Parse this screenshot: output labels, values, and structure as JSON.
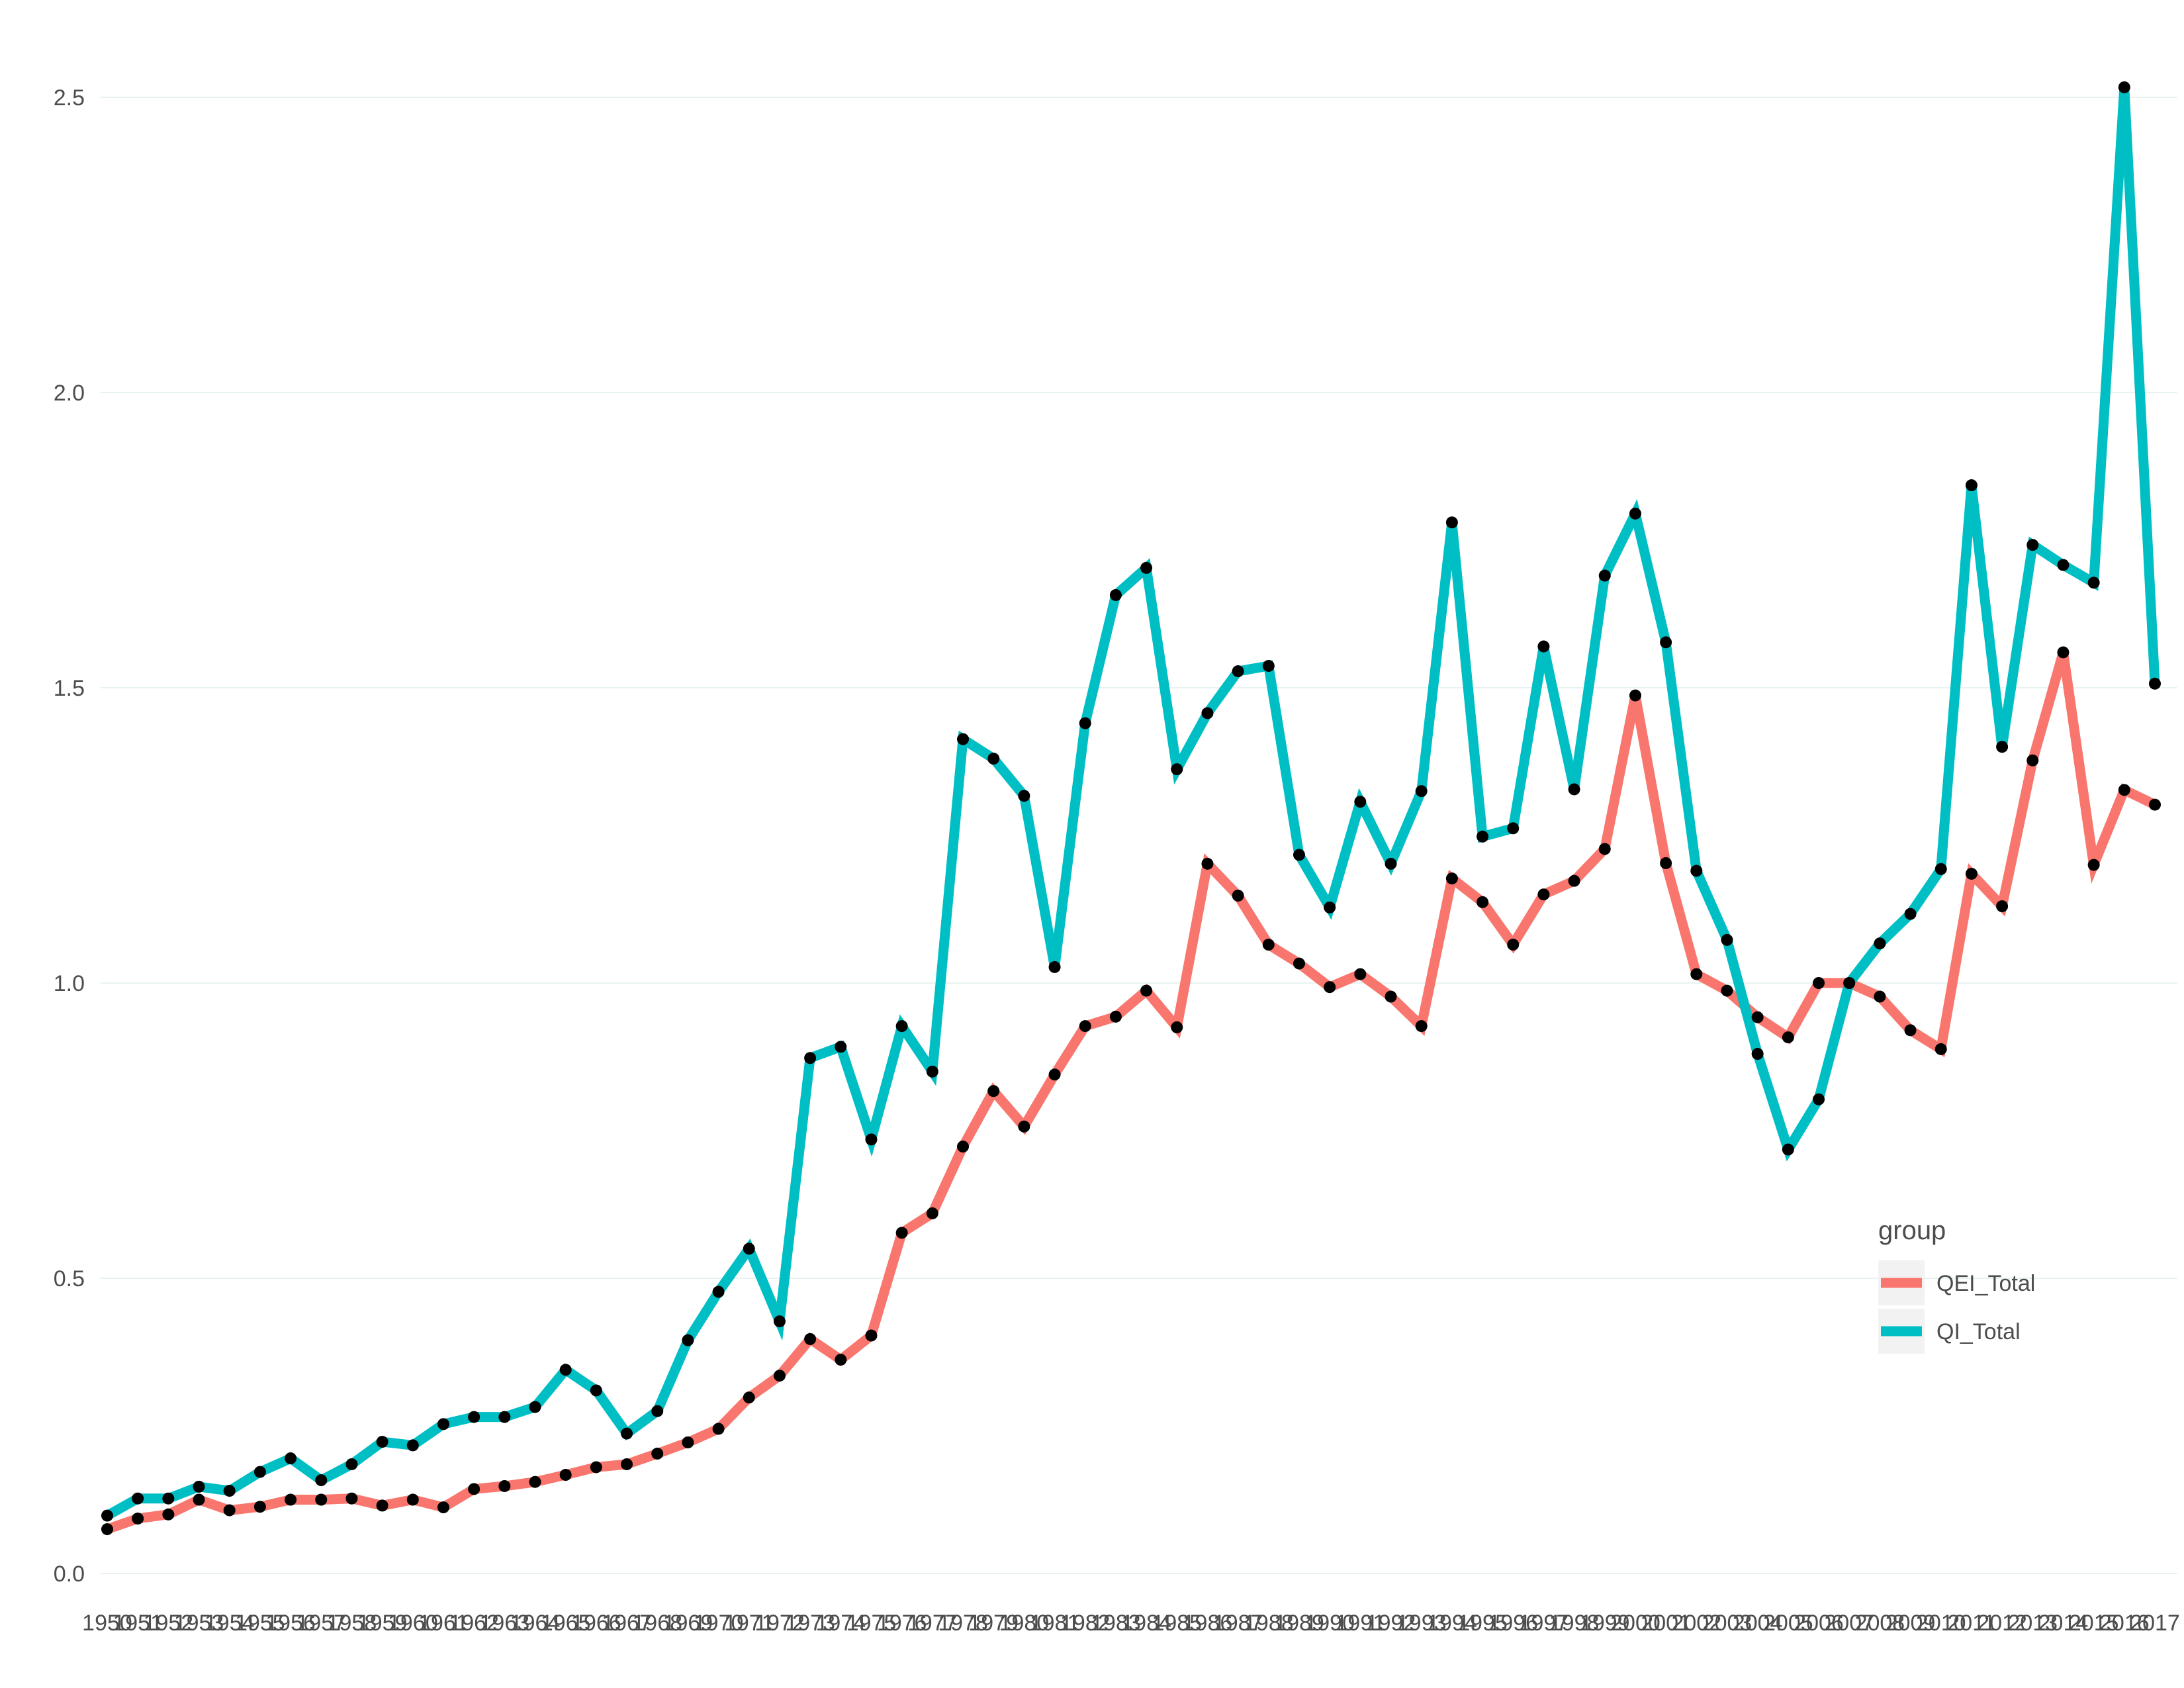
{
  "chart_data": {
    "type": "line",
    "title": "",
    "xlabel": "",
    "ylabel": "",
    "ylim": [
      0,
      2.5
    ],
    "y_ticks": [
      "0.0",
      "0.5",
      "1.0",
      "1.5",
      "2.0",
      "2.5"
    ],
    "y_tick_values": [
      0,
      0.5,
      1.0,
      1.5,
      2.0,
      2.5
    ],
    "grid": "horizontal",
    "legend": {
      "title": "group",
      "position": "right"
    },
    "x": [
      1950,
      1951,
      1952,
      1953,
      1954,
      1955,
      1956,
      1957,
      1958,
      1959,
      1960,
      1961,
      1962,
      1963,
      1964,
      1965,
      1966,
      1967,
      1968,
      1969,
      1970,
      1971,
      1972,
      1973,
      1974,
      1975,
      1976,
      1977,
      1978,
      1979,
      1980,
      1981,
      1982,
      1983,
      1984,
      1985,
      1986,
      1987,
      1988,
      1989,
      1990,
      1991,
      1992,
      1993,
      1994,
      1995,
      1996,
      1997,
      1998,
      1999,
      2000,
      2001,
      2002,
      2003,
      2004,
      2005,
      2006,
      2007,
      2008,
      2009,
      2010,
      2011,
      2012,
      2013,
      2014,
      2015,
      2016,
      2017
    ],
    "x_tick_labels": [
      "1950",
      "1951",
      "1952",
      "1953",
      "1954",
      "1955",
      "1956",
      "1957",
      "1958",
      "1959",
      "1960",
      "1961",
      "1962",
      "1963",
      "1964",
      "1965",
      "1966",
      "1967",
      "1968",
      "1969",
      "1970",
      "1971",
      "1972",
      "1973",
      "1974",
      "1975",
      "1976",
      "1977",
      "1978",
      "1979",
      "1980",
      "1981",
      "1982",
      "1983",
      "1984",
      "1985",
      "1986",
      "1987",
      "1988",
      "1989",
      "1990",
      "1991",
      "1992",
      "1993",
      "1994",
      "1995",
      "1996",
      "1997",
      "1998",
      "1999",
      "2000",
      "2001",
      "2002",
      "2003",
      "2004",
      "2005",
      "2006",
      "2007",
      "2008",
      "2009",
      "2010",
      "2011",
      "2012",
      "2013",
      "2014",
      "2015",
      "2016",
      "2017"
    ],
    "series": [
      {
        "name": "QEI_Total",
        "color": "#F8766D",
        "values": [
          0.075,
          0.093,
          0.1,
          0.125,
          0.107,
          0.113,
          0.125,
          0.125,
          0.127,
          0.115,
          0.125,
          0.112,
          0.143,
          0.148,
          0.155,
          0.167,
          0.18,
          0.185,
          0.203,
          0.222,
          0.245,
          0.298,
          0.335,
          0.397,
          0.362,
          0.403,
          0.577,
          0.61,
          0.723,
          0.817,
          0.757,
          0.845,
          0.927,
          0.943,
          0.987,
          0.925,
          1.202,
          1.148,
          1.065,
          1.033,
          0.993,
          1.015,
          0.977,
          0.927,
          1.177,
          1.137,
          1.065,
          1.15,
          1.173,
          1.227,
          1.487,
          1.203,
          1.015,
          0.987,
          0.942,
          0.908,
          1.0,
          1.0,
          0.977,
          0.92,
          0.888,
          1.185,
          1.13,
          1.377,
          1.56,
          1.2,
          1.327,
          1.302
        ]
      },
      {
        "name": "QI_Total",
        "color": "#00BFC4",
        "values": [
          0.098,
          0.127,
          0.127,
          0.147,
          0.14,
          0.172,
          0.195,
          0.158,
          0.185,
          0.223,
          0.217,
          0.253,
          0.265,
          0.265,
          0.282,
          0.345,
          0.31,
          0.237,
          0.275,
          0.395,
          0.477,
          0.55,
          0.427,
          0.873,
          0.892,
          0.735,
          0.927,
          0.85,
          1.413,
          1.38,
          1.317,
          1.027,
          1.44,
          1.657,
          1.703,
          1.362,
          1.457,
          1.528,
          1.537,
          1.217,
          1.128,
          1.307,
          1.202,
          1.325,
          1.78,
          1.248,
          1.262,
          1.57,
          1.328,
          1.69,
          1.795,
          1.577,
          1.19,
          1.073,
          0.88,
          0.718,
          0.803,
          1.0,
          1.067,
          1.117,
          1.193,
          1.843,
          1.4,
          1.742,
          1.708,
          1.678,
          2.517,
          1.507
        ]
      }
    ]
  }
}
